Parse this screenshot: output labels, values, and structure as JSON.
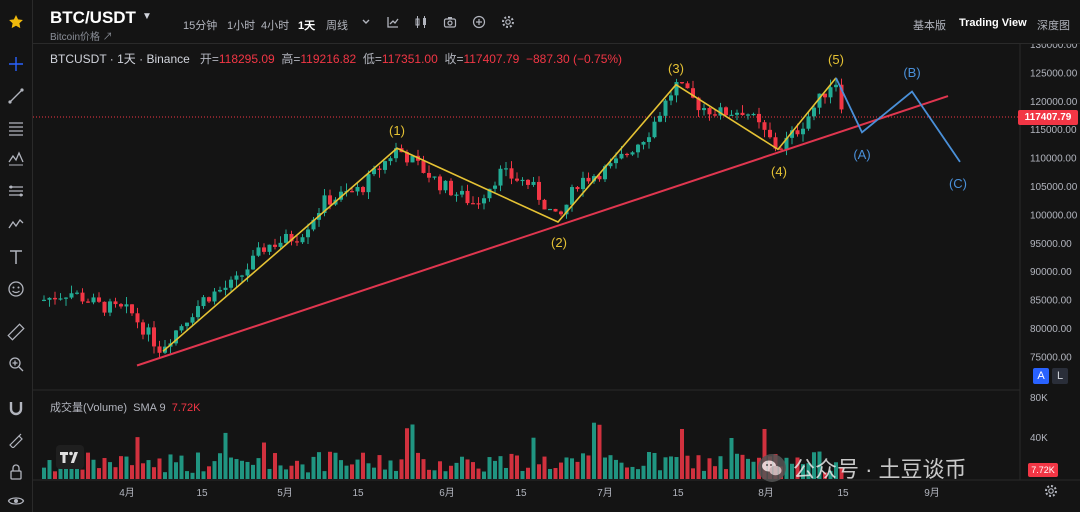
{
  "header": {
    "symbol": "BTC/USDT",
    "symbol_subtitle": "Bitcoin价格 ↗",
    "timeframes": [
      "15分钟",
      "1小时",
      "4小时",
      "1天",
      "周线"
    ],
    "active_timeframe": "1天",
    "views": [
      "基本版",
      "Trading View",
      "深度图"
    ],
    "active_view": "Trading View"
  },
  "legend": {
    "title": "BTCUSDT · 1天 · Binance",
    "open_label": "开=",
    "open": "118295.09",
    "high_label": "高=",
    "high": "119216.82",
    "low_label": "低=",
    "low": "117351.00",
    "close_label": "收=",
    "close": "117407.79",
    "change": "−887.30 (−0.75%)"
  },
  "volume_legend": {
    "label": "成交量(Volume)",
    "sma_label": "SMA 9",
    "sma_value": "7.72K"
  },
  "price_axis": [
    "130000.00",
    "125000.00",
    "120000.00",
    "115000.00",
    "110000.00",
    "105000.00",
    "100000.00",
    "95000.00",
    "90000.00",
    "85000.00",
    "80000.00",
    "75000.00"
  ],
  "volume_axis": [
    "80K",
    "40K"
  ],
  "current_price": "117407.79",
  "volume_tag": "7.72K",
  "time_axis": [
    "4月",
    "15",
    "5月",
    "15",
    "6月",
    "15",
    "7月",
    "15",
    "8月",
    "15",
    "9月"
  ],
  "wave_labels": {
    "impulse": [
      "(1)",
      "(2)",
      "(3)",
      "(4)",
      "(5)"
    ],
    "corrective": [
      "(A)",
      "(B)",
      "(C)"
    ]
  },
  "buttons": {
    "auto": "A",
    "log": "L"
  },
  "watermark": "公众号 · 土豆谈币",
  "colors": {
    "up": "#22ab94",
    "down": "#f23645",
    "wave": "#e5c234",
    "trend": "#e0364f",
    "corrective": "#4a90d9"
  },
  "chart_data": {
    "type": "candlestick",
    "symbol": "BTCUSDT",
    "interval": "1天",
    "exchange": "Binance",
    "ylim": [
      72000,
      131000
    ],
    "grid": false,
    "waves": [
      {
        "label": "(1)",
        "price": 111800
      },
      {
        "label": "(2)",
        "price": 98800
      },
      {
        "label": "(3)",
        "price": 123000
      },
      {
        "label": "(4)",
        "price": 111600
      },
      {
        "label": "(5)",
        "price": 124200
      },
      {
        "label": "(A)",
        "price": 114600
      },
      {
        "label": "(B)",
        "price": 121800
      },
      {
        "label": "(C)",
        "price": 109400
      }
    ],
    "trend_line": [
      {
        "price": 73500
      },
      {
        "price": 121000
      }
    ],
    "last_close": 117407.79
  }
}
